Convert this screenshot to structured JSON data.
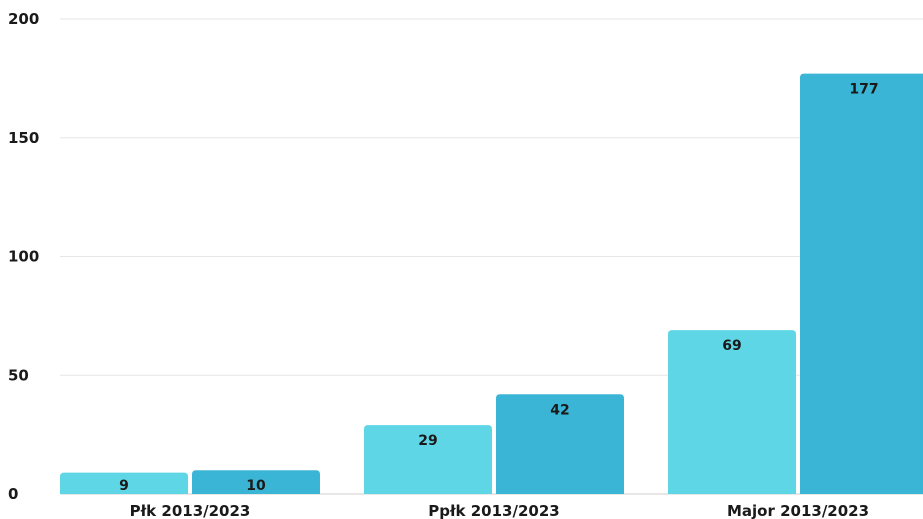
{
  "chart_data": {
    "type": "bar",
    "categories": [
      "Płk 2013/2023",
      "Ppłk 2013/2023",
      "Major 2013/2023"
    ],
    "series": [
      {
        "values": [
          9,
          29,
          69
        ],
        "color": "#5fd6e6"
      },
      {
        "values": [
          10,
          42,
          177
        ],
        "color": "#3bb5d6"
      }
    ],
    "yticks": [
      0,
      50,
      100,
      150,
      200
    ],
    "ylim": [
      0,
      200
    ],
    "grid": true,
    "data_labels": true,
    "legend": false,
    "title": "",
    "xlabel": "",
    "ylabel": ""
  }
}
